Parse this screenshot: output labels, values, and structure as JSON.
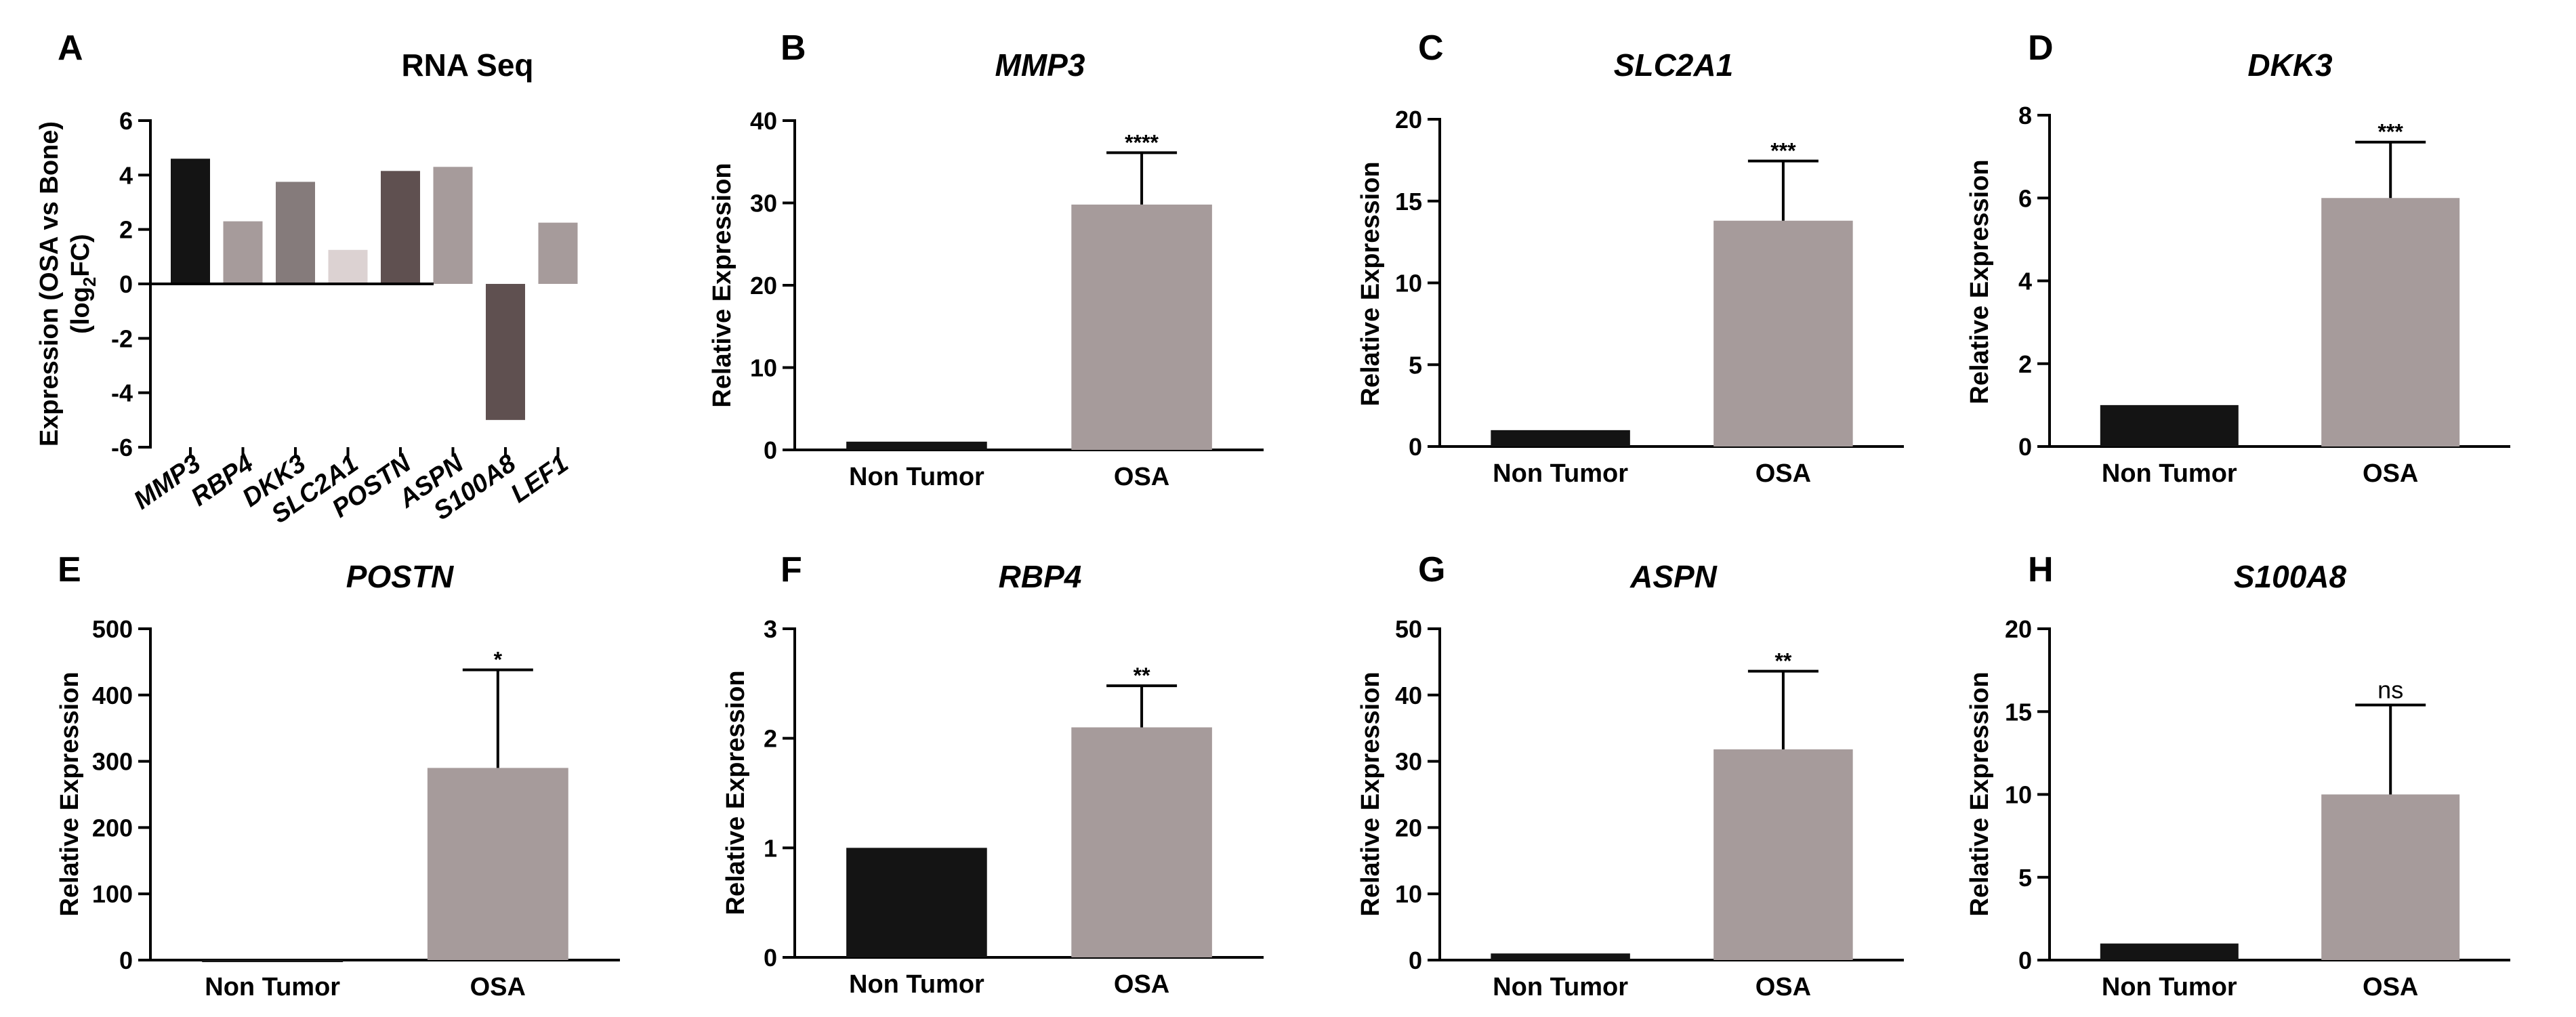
{
  "chart_data": [
    {
      "panel": "A",
      "type": "bar",
      "title": "RNA Seq",
      "title_italic": false,
      "ylabel": "Expression (OSA vs Bone) (log2FC)",
      "ylabel_line1": "Expression (OSA vs Bone)",
      "ylabel_line2_pre": "(log",
      "ylabel_line2_sub": "2",
      "ylabel_line2_post": "FC)",
      "xlabel": "",
      "ylim": [
        -6,
        6
      ],
      "yticks": [
        -6,
        -4,
        -2,
        0,
        2,
        4,
        6
      ],
      "categories": [
        "MMP3",
        "RBP4",
        "DKK3",
        "SLC2A1",
        "POSTN",
        "ASPN",
        "S100A8",
        "LEF1"
      ],
      "values": [
        4.6,
        2.3,
        3.75,
        1.25,
        4.15,
        4.3,
        -5.0,
        2.25
      ],
      "colors": [
        "#141414",
        "#a69b9b",
        "#857b7b",
        "#dcd2d2",
        "#5f5050",
        "#a69b9b",
        "#5f5050",
        "#a69b9b"
      ]
    },
    {
      "panel": "B",
      "type": "bar",
      "title": "MMP3",
      "title_italic": true,
      "ylabel": "Relative Expression",
      "xlabel": "",
      "ylim": [
        0,
        40
      ],
      "yticks": [
        0,
        10,
        20,
        30,
        40
      ],
      "categories": [
        "Non Tumor",
        "OSA"
      ],
      "values": [
        1.0,
        29.8
      ],
      "errors": [
        0,
        6.3
      ],
      "significance": "****",
      "colors": [
        "#141414",
        "#a69b9b"
      ]
    },
    {
      "panel": "C",
      "type": "bar",
      "title": "SLC2A1",
      "title_italic": true,
      "ylabel": "Relative Expression",
      "xlabel": "",
      "ylim": [
        0,
        20
      ],
      "yticks": [
        0,
        5,
        10,
        15,
        20
      ],
      "categories": [
        "Non Tumor",
        "OSA"
      ],
      "values": [
        1.0,
        13.8
      ],
      "errors": [
        0,
        3.65
      ],
      "significance": "***",
      "colors": [
        "#141414",
        "#a69b9b"
      ]
    },
    {
      "panel": "D",
      "type": "bar",
      "title": "DKK3",
      "title_italic": true,
      "ylabel": "Relative Expression",
      "xlabel": "",
      "ylim": [
        0,
        8
      ],
      "yticks": [
        0,
        2,
        4,
        6,
        8
      ],
      "categories": [
        "Non Tumor",
        "OSA"
      ],
      "values": [
        1.0,
        6.0
      ],
      "errors": [
        0,
        1.35
      ],
      "significance": "***",
      "colors": [
        "#141414",
        "#a69b9b"
      ]
    },
    {
      "panel": "E",
      "type": "bar",
      "title": "POSTN",
      "title_italic": true,
      "ylabel": "Relative Expression",
      "xlabel": "",
      "ylim": [
        0,
        500
      ],
      "yticks": [
        0,
        100,
        200,
        300,
        400,
        500
      ],
      "categories": [
        "Non Tumor",
        "OSA"
      ],
      "values": [
        1.0,
        290
      ],
      "errors": [
        0,
        148
      ],
      "significance": "*",
      "colors": [
        "#141414",
        "#a69b9b"
      ]
    },
    {
      "panel": "F",
      "type": "bar",
      "title": "RBP4",
      "title_italic": true,
      "ylabel": "Relative Expression",
      "xlabel": "",
      "ylim": [
        0,
        3
      ],
      "yticks": [
        0,
        1,
        2,
        3
      ],
      "categories": [
        "Non Tumor",
        "OSA"
      ],
      "values": [
        1.0,
        2.1
      ],
      "errors": [
        0,
        0.38
      ],
      "significance": "**",
      "colors": [
        "#141414",
        "#a69b9b"
      ]
    },
    {
      "panel": "G",
      "type": "bar",
      "title": "ASPN",
      "title_italic": true,
      "ylabel": "Relative Expression",
      "xlabel": "",
      "ylim": [
        0,
        50
      ],
      "yticks": [
        0,
        10,
        20,
        30,
        40,
        50
      ],
      "categories": [
        "Non Tumor",
        "OSA"
      ],
      "values": [
        1.0,
        31.8
      ],
      "errors": [
        0,
        11.8
      ],
      "significance": "**",
      "colors": [
        "#141414",
        "#a69b9b"
      ]
    },
    {
      "panel": "H",
      "type": "bar",
      "title": "S100A8",
      "title_italic": true,
      "ylabel": "Relative Expression",
      "xlabel": "",
      "ylim": [
        0,
        20
      ],
      "yticks": [
        0,
        5,
        10,
        15,
        20
      ],
      "categories": [
        "Non Tumor",
        "OSA"
      ],
      "values": [
        1.0,
        10.0
      ],
      "errors": [
        0,
        5.4
      ],
      "significance": "ns",
      "colors": [
        "#141414",
        "#a69b9b"
      ]
    }
  ]
}
